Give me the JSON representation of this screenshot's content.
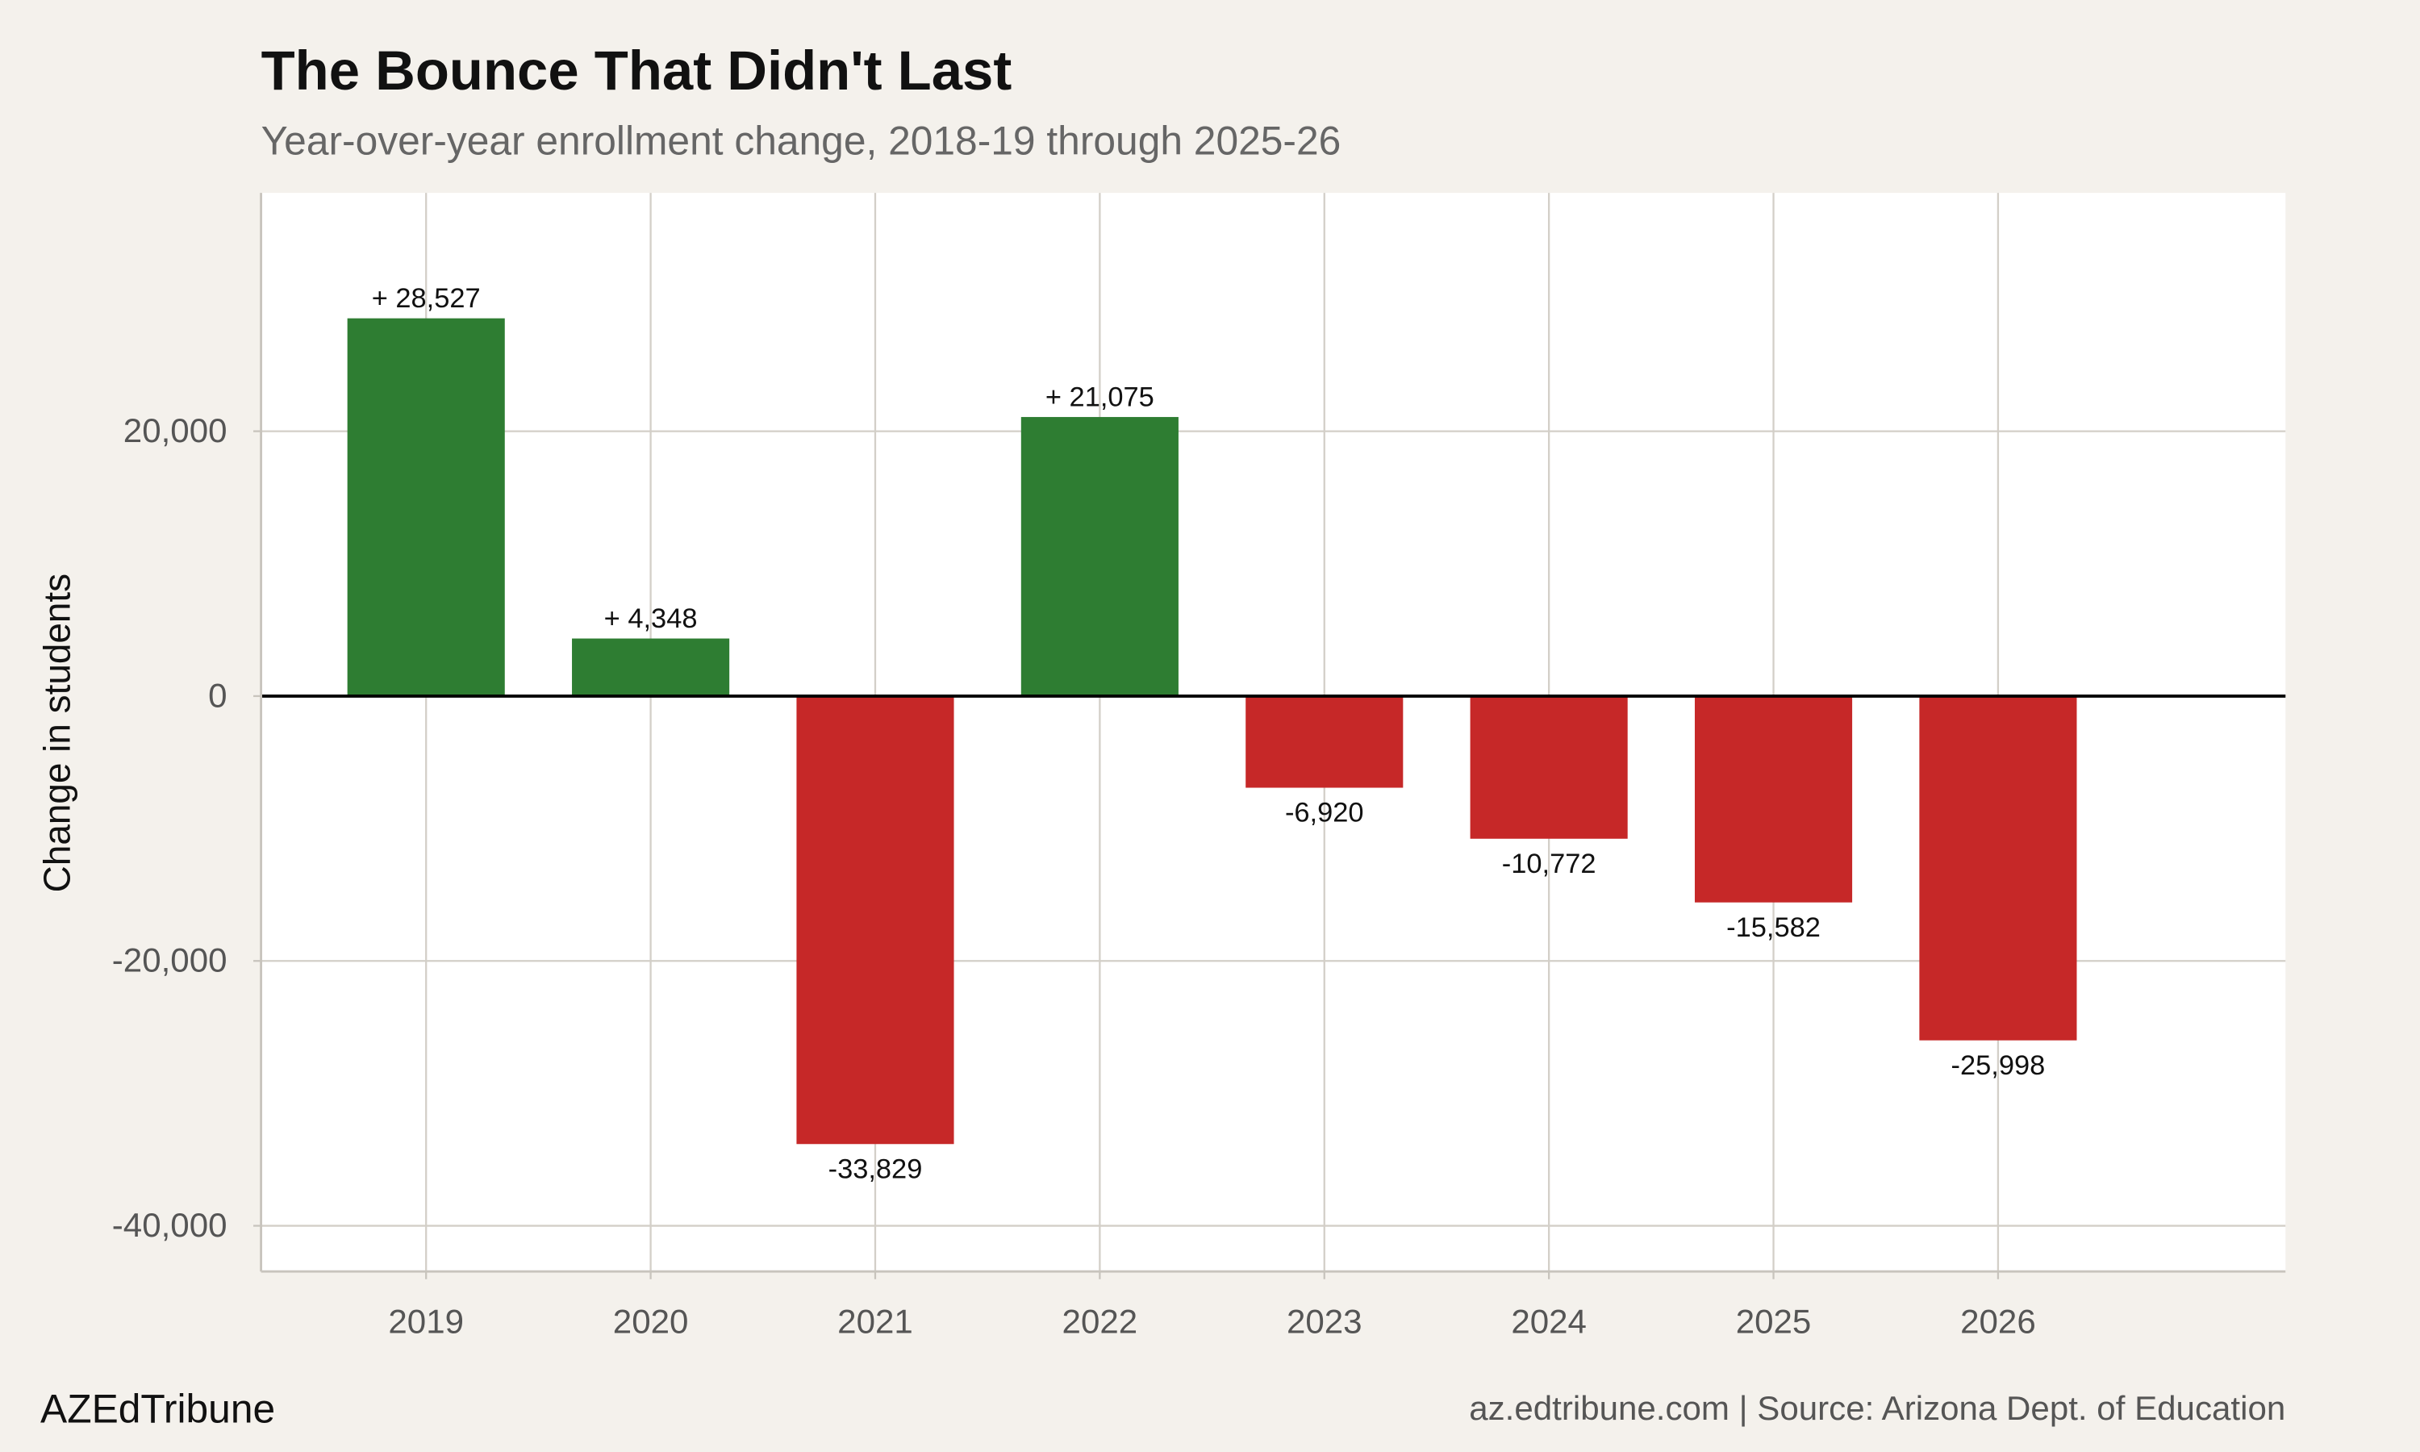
{
  "chart_data": {
    "type": "bar",
    "title": "The Bounce That Didn't Last",
    "subtitle": "Year-over-year enrollment change, 2018-19 through 2025-26",
    "xlabel": "",
    "ylabel": "Change in students",
    "categories": [
      "2019",
      "2020",
      "2021",
      "2022",
      "2023",
      "2024",
      "2025",
      "2026"
    ],
    "values": [
      28527,
      4348,
      -33829,
      21075,
      -6920,
      -10772,
      -15582,
      -25998
    ],
    "data_labels": [
      "+ 28,527",
      "+  4,348",
      "-33,829",
      "+ 21,075",
      "-6,920",
      "-10,772",
      "-15,582",
      "-25,998"
    ],
    "ylim": [
      -43450,
      38000
    ],
    "yticks": [
      20000,
      0,
      -20000,
      -40000
    ],
    "ytick_labels": [
      "20,000",
      "0",
      "-20,000",
      "-40,000"
    ],
    "grid": true,
    "legend": "none",
    "colors": {
      "positive": "#2e7d32",
      "negative": "#c62828",
      "background": "#f4f1ec",
      "panel": "#ffffff"
    }
  },
  "footer": {
    "brand": "AZEdTribune",
    "caption": "az.edtribune.com | Source: Arizona Dept. of Education"
  }
}
